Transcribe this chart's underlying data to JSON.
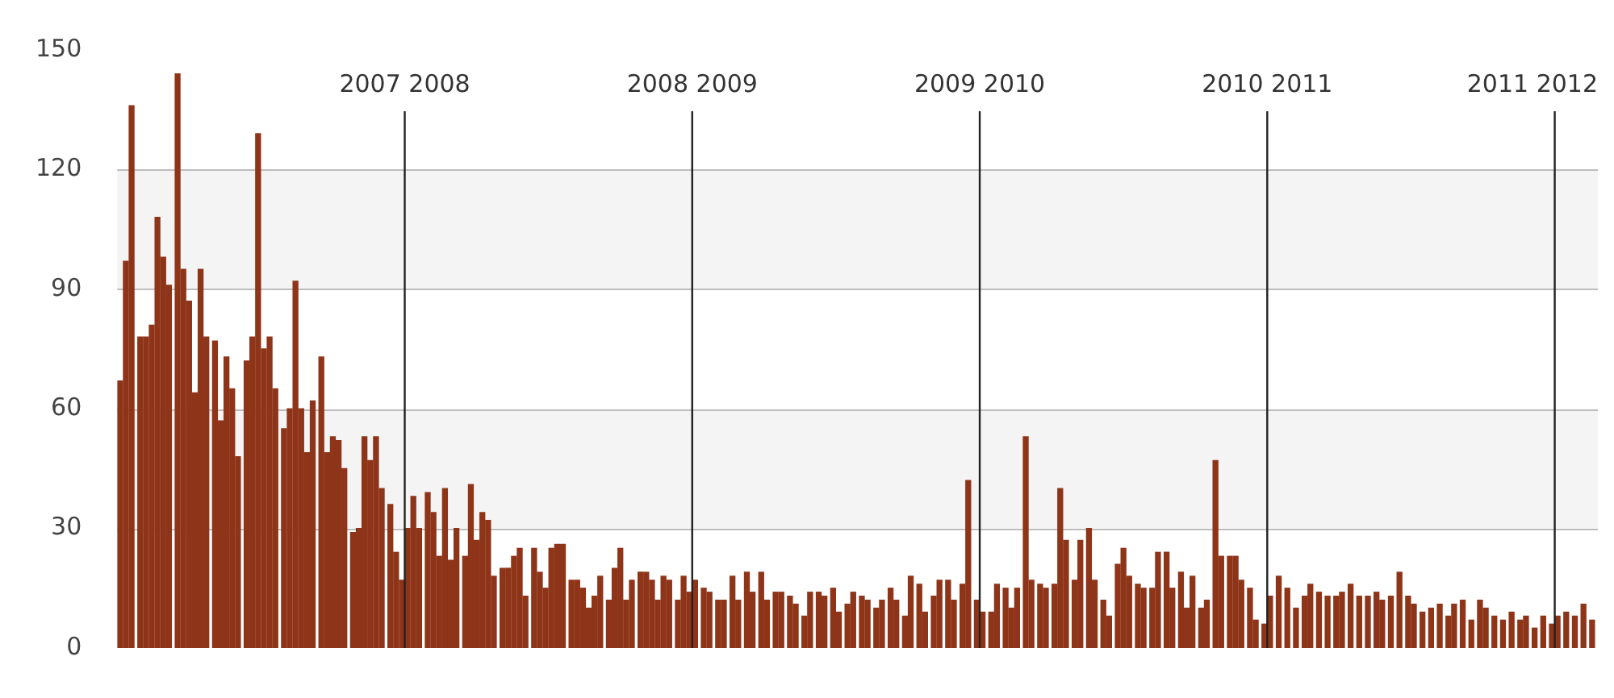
{
  "chart_data": {
    "type": "bar",
    "x": [
      2007.01,
      2007.03,
      2007.05,
      2007.08,
      2007.1,
      2007.12,
      2007.14,
      2007.16,
      2007.18,
      2007.21,
      2007.23,
      2007.25,
      2007.27,
      2007.29,
      2007.31,
      2007.34,
      2007.36,
      2007.38,
      2007.4,
      2007.42,
      2007.45,
      2007.47,
      2007.49,
      2007.51,
      2007.53,
      2007.55,
      2007.58,
      2007.6,
      2007.62,
      2007.64,
      2007.66,
      2007.68,
      2007.71,
      2007.73,
      2007.75,
      2007.77,
      2007.79,
      2007.82,
      2007.84,
      2007.86,
      2007.88,
      2007.9,
      2007.92,
      2007.95,
      2007.97,
      2007.99,
      2008.01,
      2008.03,
      2008.05,
      2008.08,
      2008.1,
      2008.12,
      2008.14,
      2008.16,
      2008.18,
      2008.21,
      2008.23,
      2008.25,
      2008.27,
      2008.29,
      2008.31,
      2008.34,
      2008.36,
      2008.38,
      2008.4,
      2008.42,
      2008.45,
      2008.47,
      2008.49,
      2008.51,
      2008.53,
      2008.55,
      2008.58,
      2008.6,
      2008.62,
      2008.64,
      2008.66,
      2008.68,
      2008.71,
      2008.73,
      2008.75,
      2008.77,
      2008.79,
      2008.82,
      2008.84,
      2008.86,
      2008.88,
      2008.9,
      2008.92,
      2008.95,
      2008.97,
      2008.99,
      2009.01,
      2009.04,
      2009.06,
      2009.09,
      2009.11,
      2009.14,
      2009.16,
      2009.19,
      2009.21,
      2009.24,
      2009.26,
      2009.29,
      2009.31,
      2009.34,
      2009.36,
      2009.39,
      2009.41,
      2009.44,
      2009.46,
      2009.49,
      2009.51,
      2009.54,
      2009.56,
      2009.59,
      2009.61,
      2009.64,
      2009.66,
      2009.69,
      2009.71,
      2009.74,
      2009.76,
      2009.79,
      2009.81,
      2009.84,
      2009.86,
      2009.89,
      2009.91,
      2009.94,
      2009.96,
      2009.99,
      2010.01,
      2010.04,
      2010.06,
      2010.09,
      2010.11,
      2010.13,
      2010.16,
      2010.18,
      2010.21,
      2010.23,
      2010.26,
      2010.28,
      2010.3,
      2010.33,
      2010.35,
      2010.38,
      2010.4,
      2010.43,
      2010.45,
      2010.48,
      2010.5,
      2010.52,
      2010.55,
      2010.57,
      2010.6,
      2010.62,
      2010.65,
      2010.67,
      2010.7,
      2010.72,
      2010.74,
      2010.77,
      2010.79,
      2010.82,
      2010.84,
      2010.87,
      2010.89,
      2010.91,
      2010.94,
      2010.96,
      2010.99,
      2011.01,
      2011.04,
      2011.07,
      2011.1,
      2011.13,
      2011.15,
      2011.18,
      2011.21,
      2011.24,
      2011.26,
      2011.29,
      2011.32,
      2011.35,
      2011.38,
      2011.4,
      2011.43,
      2011.46,
      2011.49,
      2011.51,
      2011.54,
      2011.57,
      2011.6,
      2011.63,
      2011.65,
      2011.68,
      2011.71,
      2011.74,
      2011.76,
      2011.79,
      2011.82,
      2011.85,
      2011.88,
      2011.9,
      2011.93,
      2011.96,
      2011.99,
      2012.01,
      2012.04,
      2012.07,
      2012.1,
      2012.13
    ],
    "values": [
      67,
      97,
      136,
      78,
      78,
      81,
      108,
      98,
      91,
      144,
      95,
      87,
      64,
      95,
      78,
      77,
      57,
      73,
      65,
      48,
      72,
      78,
      129,
      75,
      78,
      65,
      55,
      60,
      92,
      60,
      49,
      62,
      73,
      49,
      53,
      52,
      45,
      29,
      30,
      53,
      47,
      53,
      40,
      36,
      24,
      17,
      30,
      38,
      30,
      39,
      34,
      23,
      40,
      22,
      30,
      23,
      41,
      27,
      34,
      32,
      18,
      20,
      20,
      23,
      25,
      13,
      25,
      19,
      15,
      25,
      26,
      26,
      17,
      17,
      15,
      10,
      13,
      18,
      12,
      20,
      25,
      12,
      17,
      19,
      19,
      17,
      12,
      18,
      17,
      12,
      18,
      14,
      17,
      15,
      14,
      12,
      12,
      18,
      12,
      19,
      14,
      19,
      12,
      14,
      14,
      13,
      11,
      8,
      14,
      14,
      13,
      15,
      9,
      11,
      14,
      13,
      12,
      10,
      12,
      15,
      12,
      8,
      18,
      16,
      9,
      13,
      17,
      17,
      12,
      16,
      42,
      12,
      9,
      9,
      16,
      15,
      10,
      15,
      53,
      17,
      16,
      15,
      16,
      40,
      27,
      17,
      27,
      30,
      17,
      12,
      8,
      21,
      25,
      18,
      16,
      15,
      15,
      24,
      24,
      15,
      19,
      10,
      18,
      10,
      12,
      47,
      23,
      23,
      23,
      17,
      15,
      7,
      6,
      13,
      18,
      15,
      10,
      13,
      16,
      14,
      13,
      13,
      14,
      16,
      13,
      13,
      14,
      12,
      13,
      19,
      13,
      11,
      9,
      10,
      11,
      8,
      11,
      12,
      7,
      12,
      10,
      8,
      7,
      9,
      7,
      8,
      5,
      8,
      6,
      8,
      9,
      8,
      11,
      7
    ],
    "color": "#8e3418",
    "xlim": [
      2007,
      2012.15
    ],
    "ylim": [
      0,
      150
    ],
    "yticks": [
      0,
      30,
      60,
      90,
      120,
      150
    ],
    "grid": "y",
    "tick_labels": "y",
    "bands": [
      {
        "axis": "y",
        "from": 30,
        "to": 60,
        "color": "#f4f4f4"
      },
      {
        "axis": "y",
        "from": 90,
        "to": 120,
        "color": "#f4f4f4"
      }
    ],
    "ref_lines": [
      {
        "axis": "x",
        "value": 2008,
        "label": "2007 2008",
        "color": "#222222"
      },
      {
        "axis": "x",
        "value": 2009,
        "label": "2008 2009",
        "color": "#222222"
      },
      {
        "axis": "x",
        "value": 2010,
        "label": "2009 2010",
        "color": "#222222"
      },
      {
        "axis": "x",
        "value": 2011,
        "label": "2010 2011",
        "color": "#222222"
      },
      {
        "axis": "x",
        "value": 2012,
        "label": "2011 2012",
        "color": "#222222"
      }
    ]
  }
}
